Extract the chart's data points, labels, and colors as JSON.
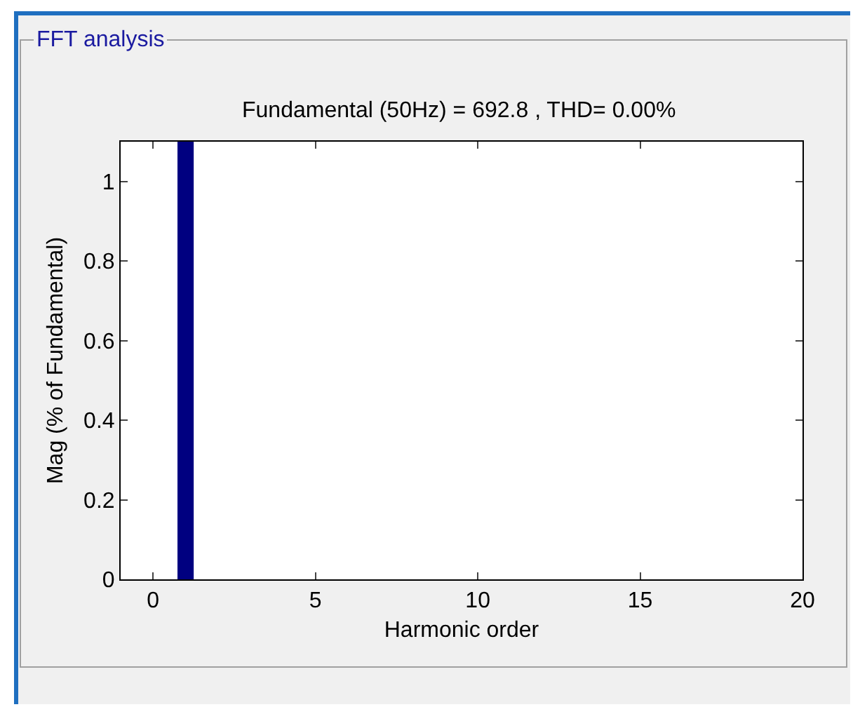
{
  "chart_data": {
    "type": "bar",
    "title": "FFT analysis",
    "subtitle": "Fundamental (50Hz) = 692.8 , THD= 0.00%",
    "xlabel": "Harmonic order",
    "ylabel": "Mag (% of Fundamental)",
    "x": [
      1
    ],
    "series": [
      {
        "color": "#000080",
        "values": [
          1.1
        ]
      }
    ],
    "xlim": [
      -1,
      20
    ],
    "xticks": [
      0,
      5,
      10,
      15,
      20
    ],
    "ylim": [
      0,
      1.1
    ],
    "yticks": [
      0,
      0.2,
      0.4,
      0.6,
      0.8,
      1
    ],
    "grid": false
  }
}
